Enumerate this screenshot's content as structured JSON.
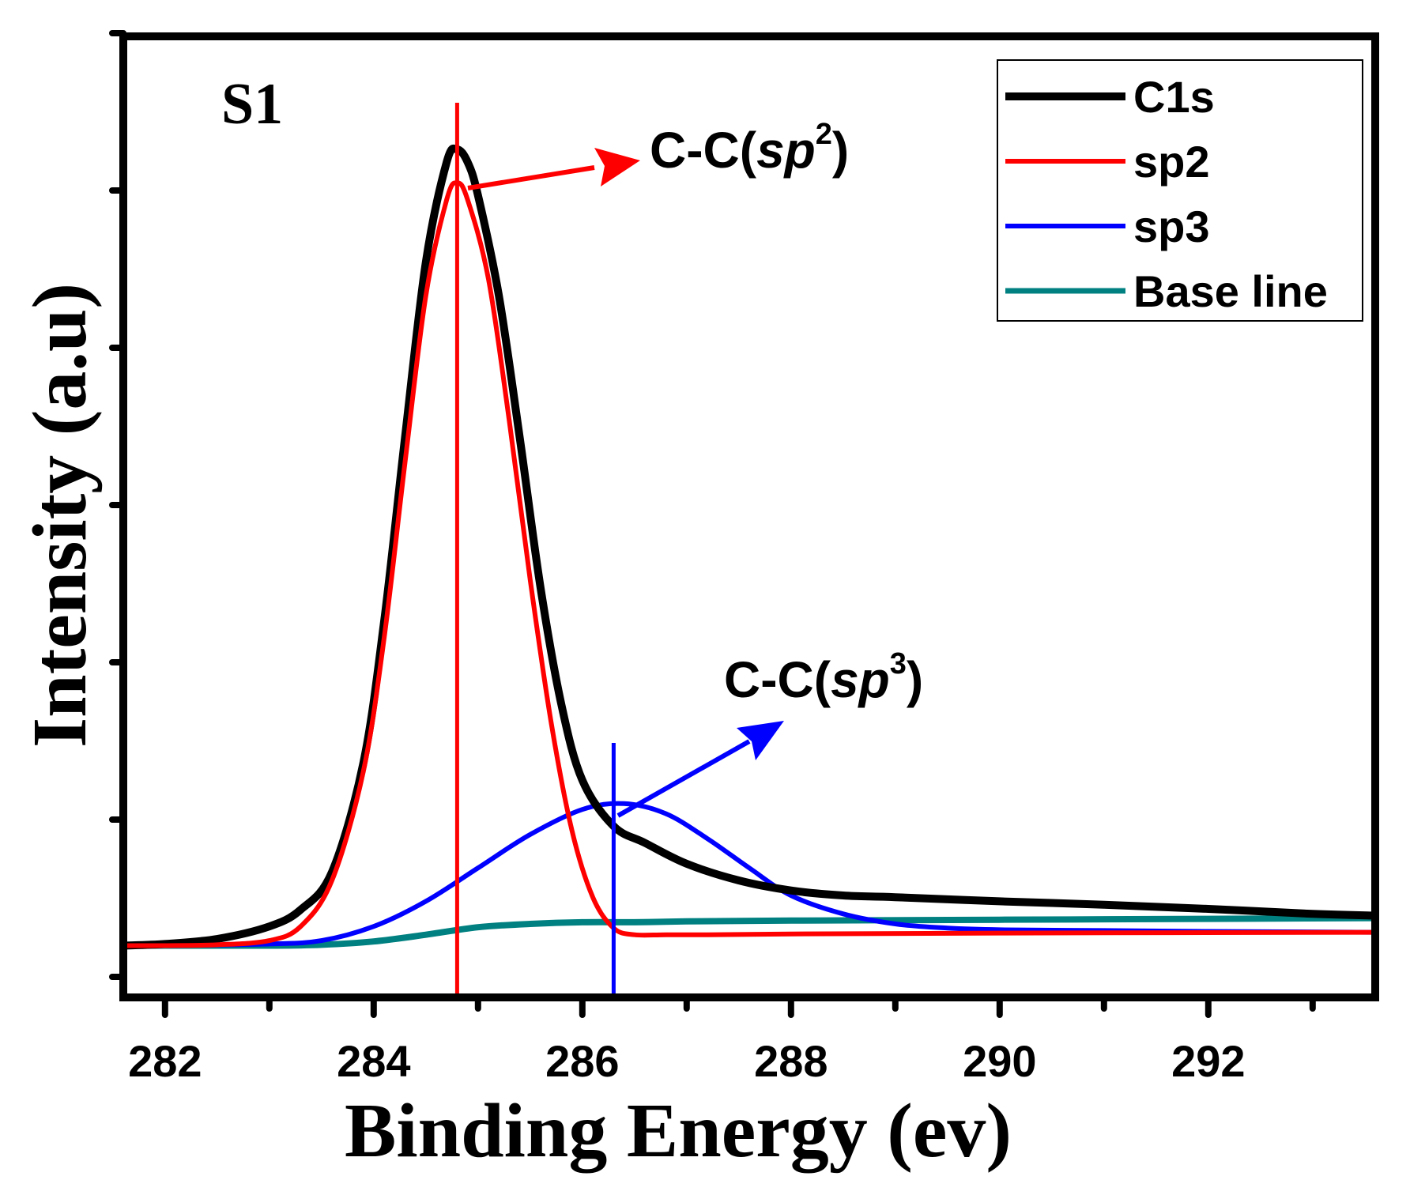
{
  "chart_data": {
    "type": "line",
    "title": "",
    "panel_label": "S1",
    "xlabel": "Binding Energy (ev)",
    "ylabel": "Intensity (a.u)",
    "xlim": [
      281.6,
      293.6
    ],
    "ylim": [
      0,
      1
    ],
    "x_ticks": [
      282,
      284,
      286,
      288,
      290,
      292
    ],
    "x_tick_labels": [
      "282",
      "284",
      "286",
      "288",
      "290",
      "292"
    ],
    "grid": false,
    "legend_position": "top-right",
    "series": [
      {
        "name": "C1s",
        "color": "#000000",
        "x": [
          281.6,
          282.0,
          282.5,
          283.0,
          283.3,
          283.6,
          283.9,
          284.1,
          284.3,
          284.5,
          284.7,
          284.8,
          284.9,
          285.0,
          285.2,
          285.4,
          285.6,
          285.8,
          286.0,
          286.3,
          286.6,
          287.0,
          287.5,
          288.0,
          288.5,
          289.0,
          290.0,
          291.0,
          292.0,
          293.0,
          293.6
        ],
        "values": [
          0.062,
          0.064,
          0.07,
          0.085,
          0.105,
          0.15,
          0.28,
          0.45,
          0.67,
          0.88,
          1.0,
          1.015,
          1.0,
          0.96,
          0.84,
          0.67,
          0.49,
          0.35,
          0.26,
          0.205,
          0.185,
          0.16,
          0.14,
          0.128,
          0.122,
          0.12,
          0.115,
          0.111,
          0.106,
          0.1,
          0.098
        ]
      },
      {
        "name": "sp2",
        "color": "#ff0000",
        "x": [
          281.6,
          282.0,
          282.5,
          283.0,
          283.3,
          283.6,
          283.9,
          284.1,
          284.3,
          284.5,
          284.7,
          284.8,
          284.9,
          285.1,
          285.3,
          285.5,
          285.7,
          285.9,
          286.1,
          286.3,
          286.5,
          286.8,
          287.2,
          288.0,
          290.0,
          293.6
        ],
        "values": [
          0.062,
          0.062,
          0.063,
          0.068,
          0.085,
          0.14,
          0.27,
          0.43,
          0.64,
          0.84,
          0.955,
          0.975,
          0.955,
          0.86,
          0.69,
          0.5,
          0.33,
          0.2,
          0.12,
          0.083,
          0.075,
          0.075,
          0.075,
          0.076,
          0.077,
          0.078
        ]
      },
      {
        "name": "sp3",
        "color": "#0000ff",
        "x": [
          281.6,
          282.0,
          283.0,
          283.5,
          284.0,
          284.5,
          285.0,
          285.5,
          286.0,
          286.4,
          286.8,
          287.2,
          287.6,
          288.0,
          288.5,
          289.0,
          289.5,
          290.0,
          291.0,
          292.0,
          293.6
        ],
        "values": [
          0.062,
          0.062,
          0.064,
          0.068,
          0.085,
          0.115,
          0.155,
          0.195,
          0.225,
          0.232,
          0.22,
          0.19,
          0.155,
          0.122,
          0.1,
          0.088,
          0.083,
          0.081,
          0.08,
          0.079,
          0.078
        ]
      },
      {
        "name": "Base line",
        "color": "#008080",
        "x": [
          281.6,
          282.0,
          283.0,
          283.5,
          284.0,
          284.5,
          285.0,
          285.5,
          286.0,
          286.5,
          287.0,
          288.0,
          290.0,
          292.0,
          293.6
        ],
        "values": [
          0.062,
          0.062,
          0.062,
          0.063,
          0.067,
          0.075,
          0.084,
          0.088,
          0.09,
          0.09,
          0.091,
          0.092,
          0.093,
          0.094,
          0.095
        ]
      }
    ],
    "reference_lines": [
      {
        "name": "sp2-peak-marker",
        "color": "#ff0000",
        "x": 284.8
      },
      {
        "name": "sp3-peak-marker",
        "color": "#0000ff",
        "x": 286.3
      }
    ],
    "annotations": [
      {
        "name": "sp2-annotation",
        "color": "#ff0000",
        "text_main": "C-C(",
        "text_italic": "sp",
        "superscript": "2",
        "text_close": ")"
      },
      {
        "name": "sp3-annotation",
        "color": "#0000ff",
        "text_main": "C-C(",
        "text_italic": "sp",
        "superscript": "3",
        "text_close": ")"
      }
    ]
  }
}
